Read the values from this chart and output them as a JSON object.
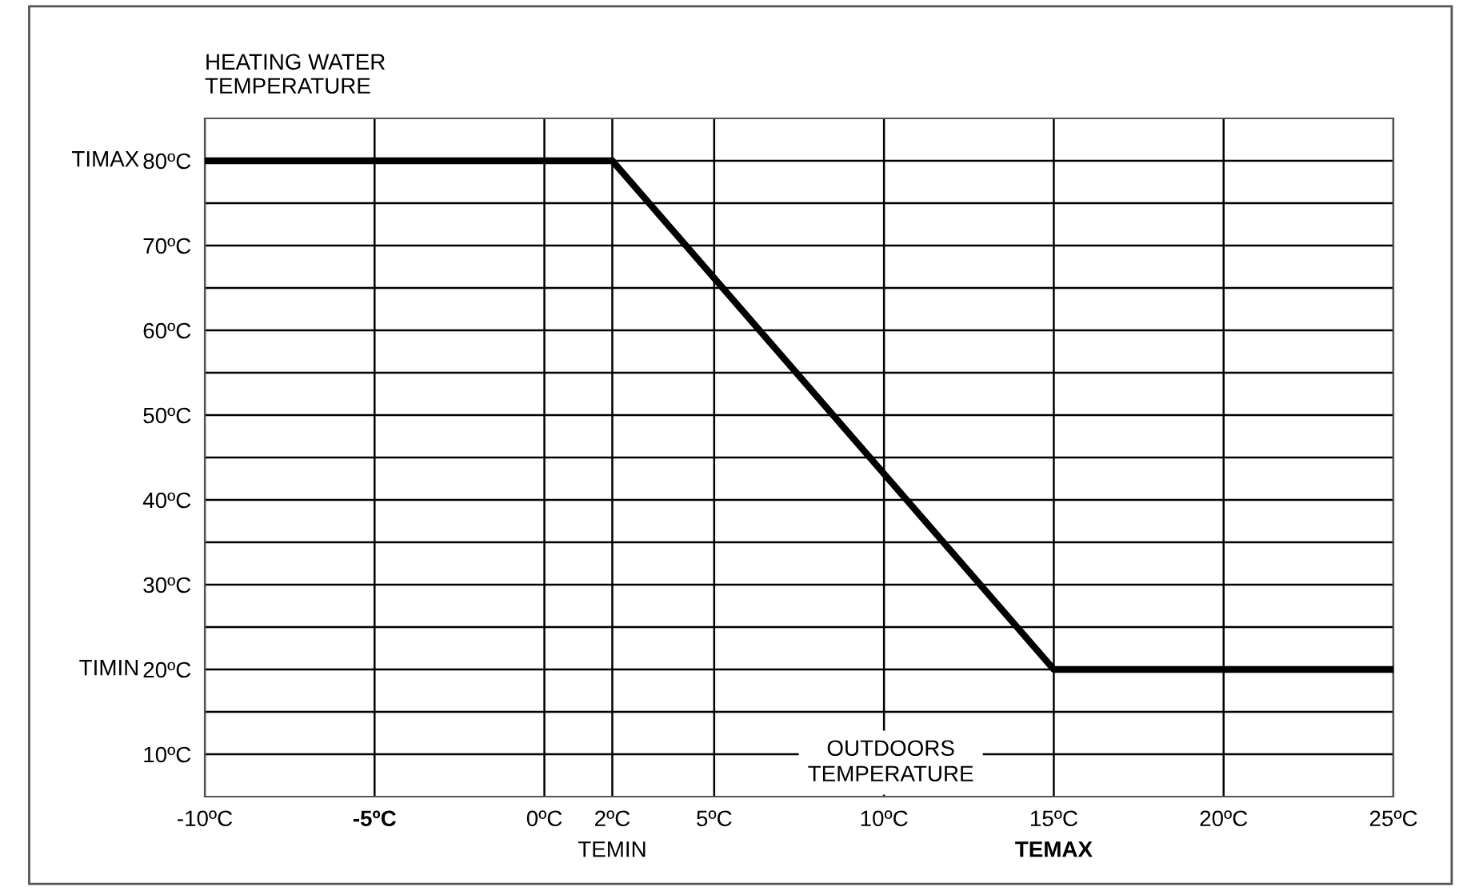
{
  "chart_data": {
    "type": "line",
    "ylabel": "HEATING WATER\nTEMPERATURE",
    "x": [
      -10,
      2,
      15,
      25
    ],
    "series": [
      {
        "color": "#000000",
        "values": [
          80,
          80,
          20,
          20
        ]
      }
    ],
    "xlim": [
      -10,
      25
    ],
    "xticks": [
      {
        "value": -10,
        "label": "-10ºC"
      },
      {
        "value": -5,
        "label": "-5ºC"
      },
      {
        "value": 0,
        "label": "0ºC"
      },
      {
        "value": 2,
        "label": "2ºC"
      },
      {
        "value": 5,
        "label": "5ºC"
      },
      {
        "value": 10,
        "label": "10ºC"
      },
      {
        "value": 15,
        "label": "15ºC"
      },
      {
        "value": 20,
        "label": "20ºC"
      },
      {
        "value": 25,
        "label": "25ºC"
      }
    ],
    "ylim": [
      5,
      85
    ],
    "yticks": [
      {
        "value": 10,
        "label": "10ºC"
      },
      {
        "value": 15,
        "label": null
      },
      {
        "value": 20,
        "label": "20ºC"
      },
      {
        "value": 25,
        "label": null
      },
      {
        "value": 30,
        "label": "30ºC"
      },
      {
        "value": 35,
        "label": null
      },
      {
        "value": 40,
        "label": "40ºC"
      },
      {
        "value": 45,
        "label": null
      },
      {
        "value": 50,
        "label": "50ºC"
      },
      {
        "value": 55,
        "label": null
      },
      {
        "value": 60,
        "label": "60ºC"
      },
      {
        "value": 65,
        "label": null
      },
      {
        "value": 70,
        "label": "70ºC"
      },
      {
        "value": 75,
        "label": null
      },
      {
        "value": 80,
        "label": "80ºC"
      }
    ],
    "grid": true,
    "line_style": "solid",
    "marker": "none",
    "annotations": [
      "TIMAX",
      "TIMIN",
      "TEMIN",
      "TEMAX",
      "OUTDOORS\nTEMPERATURE"
    ]
  }
}
